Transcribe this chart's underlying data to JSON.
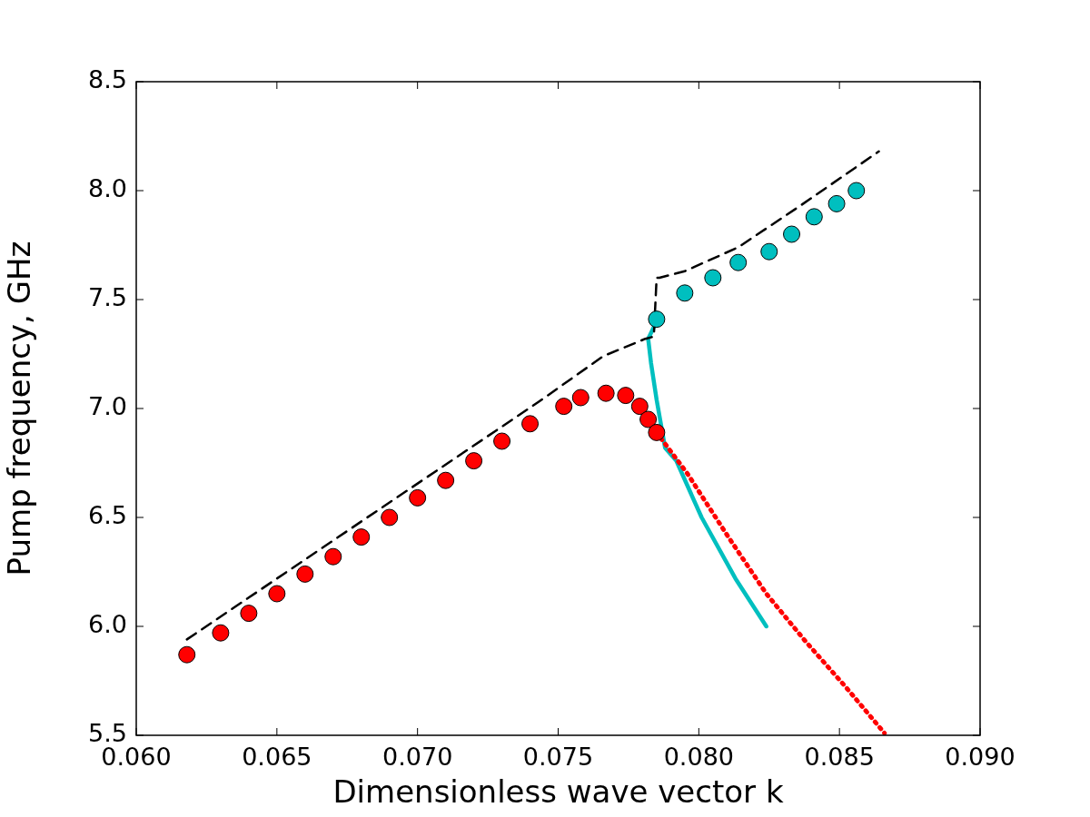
{
  "chart_data": {
    "type": "line",
    "xlabel": "Dimensionless wave vector k",
    "ylabel": "Pump frequency, GHz",
    "xlim": [
      0.06,
      0.09
    ],
    "ylim": [
      5.5,
      8.5
    ],
    "xticks": [
      {
        "value": 0.06,
        "label": "0.060"
      },
      {
        "value": 0.065,
        "label": "0.065"
      },
      {
        "value": 0.07,
        "label": "0.070"
      },
      {
        "value": 0.075,
        "label": "0.075"
      },
      {
        "value": 0.08,
        "label": "0.080"
      },
      {
        "value": 0.085,
        "label": "0.085"
      },
      {
        "value": 0.09,
        "label": "0.090"
      }
    ],
    "yticks": [
      5.5,
      {
        "value": 6,
        "label": "6.0"
      },
      6.5,
      {
        "value": 7,
        "label": "7.0"
      },
      7.5,
      {
        "value": 8,
        "label": "8.0"
      },
      8.5
    ],
    "grid": false,
    "legend": false,
    "series": [
      {
        "type": "line",
        "color": "#000000",
        "line_style": "dashed",
        "marker": "none",
        "x": [
          0.0618,
          0.0681,
          0.0743,
          0.0766,
          0.0781,
          0.0784,
          0.0785,
          0.0786,
          0.0795,
          0.0814,
          0.0836,
          0.0864
        ],
        "values": [
          5.94,
          6.49,
          7.03,
          7.24,
          7.32,
          7.33,
          7.6,
          7.6,
          7.63,
          7.74,
          7.93,
          8.18
        ]
      },
      {
        "type": "line",
        "color": "#ff0000",
        "line_style": "dotted",
        "marker": "none",
        "x": [
          0.0785,
          0.0796,
          0.081,
          0.0824,
          0.0838,
          0.0853,
          0.0866
        ],
        "values": [
          6.89,
          6.7,
          6.42,
          6.15,
          5.93,
          5.71,
          5.51
        ]
      },
      {
        "type": "line",
        "color": "#00bfbf",
        "line_style": "solid",
        "marker": "none",
        "x": [
          0.0785,
          0.0782,
          0.0783,
          0.0785,
          0.0788,
          0.0792,
          0.0801,
          0.0813,
          0.0824
        ],
        "values": [
          7.4,
          7.32,
          7.21,
          7.04,
          6.82,
          6.76,
          6.5,
          6.22,
          6.0
        ]
      },
      {
        "type": "scatter",
        "color": "#ff0000",
        "marker": "circle",
        "x": [
          0.0618,
          0.063,
          0.064,
          0.065,
          0.066,
          0.067,
          0.068,
          0.069,
          0.07,
          0.071,
          0.072,
          0.073,
          0.074,
          0.0752,
          0.0758,
          0.0767,
          0.0774,
          0.0779,
          0.0782,
          0.0785
        ],
        "values": [
          5.87,
          5.97,
          6.06,
          6.15,
          6.24,
          6.32,
          6.41,
          6.5,
          6.59,
          6.67,
          6.76,
          6.85,
          6.93,
          7.01,
          7.05,
          7.07,
          7.06,
          7.01,
          6.95,
          6.89
        ]
      },
      {
        "type": "scatter",
        "color": "#00bfbf",
        "marker": "circle",
        "x": [
          0.0785,
          0.0795,
          0.0805,
          0.0814,
          0.0825,
          0.0833,
          0.0841,
          0.0849,
          0.0856
        ],
        "values": [
          7.41,
          7.53,
          7.6,
          7.67,
          7.72,
          7.8,
          7.88,
          7.94,
          8.0
        ]
      }
    ]
  }
}
